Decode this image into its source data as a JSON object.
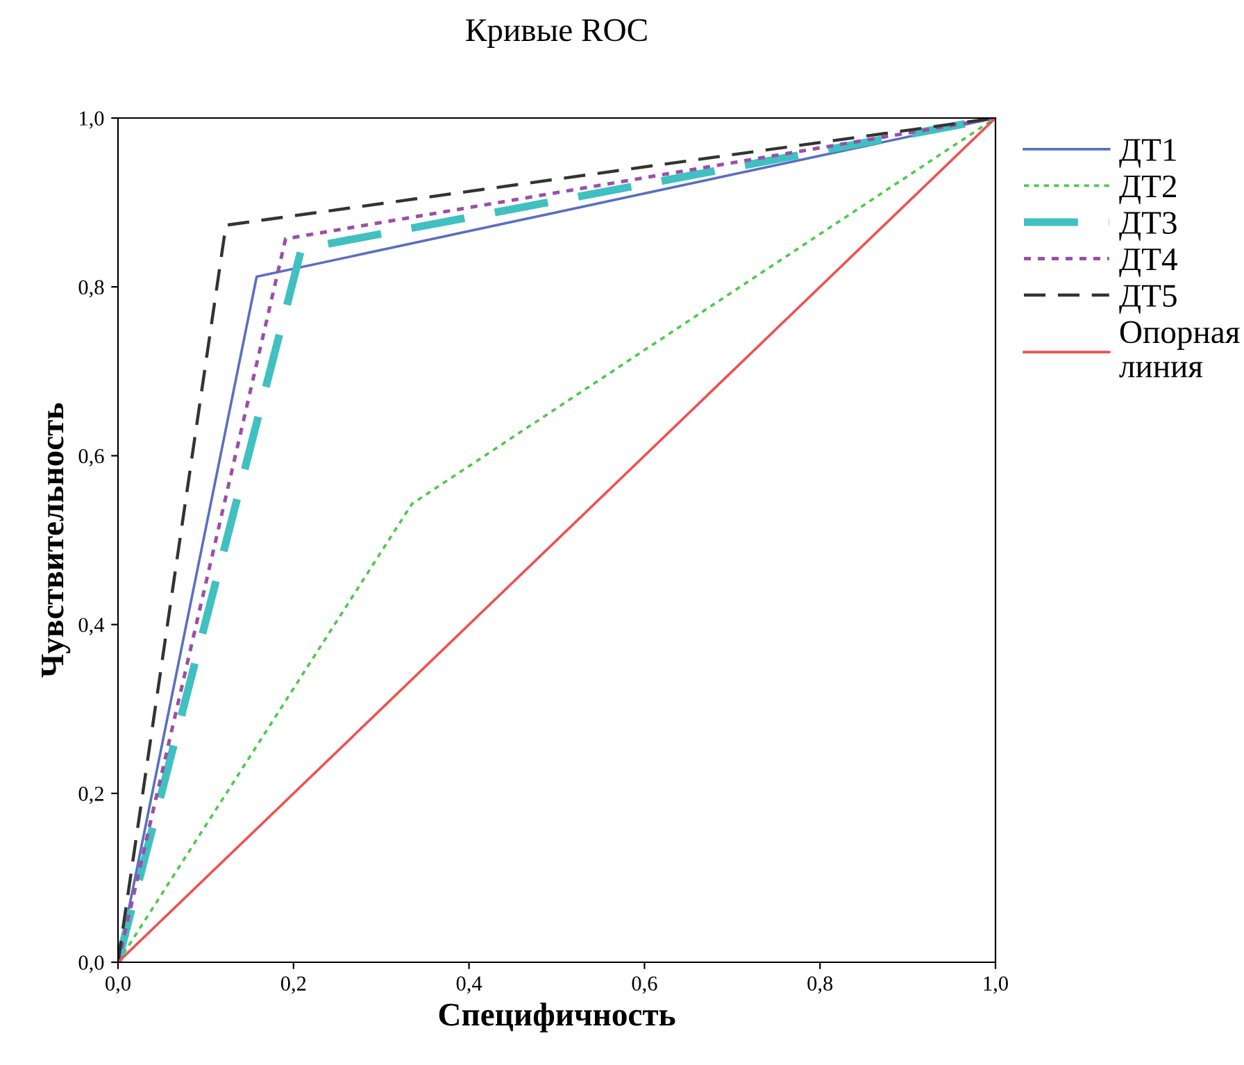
{
  "chart_data": {
    "type": "line",
    "title": "Кривые ROC",
    "xlabel": "Специфичность",
    "ylabel": "Чувствительность",
    "xlim": [
      0,
      1
    ],
    "ylim": [
      0,
      1
    ],
    "xticks": [
      {
        "value": 0,
        "label": "0,0"
      },
      {
        "value": 0.2,
        "label": "0,2"
      },
      {
        "value": 0.4,
        "label": "0,4"
      },
      {
        "value": 0.6,
        "label": "0,6"
      },
      {
        "value": 0.8,
        "label": "0,8"
      },
      {
        "value": 1,
        "label": "1,0"
      }
    ],
    "yticks": [
      {
        "value": 0,
        "label": "0,0"
      },
      {
        "value": 0.2,
        "label": "0,2"
      },
      {
        "value": 0.4,
        "label": "0,4"
      },
      {
        "value": 0.6,
        "label": "0,6"
      },
      {
        "value": 0.8,
        "label": "0,8"
      },
      {
        "value": 1,
        "label": "1,0"
      }
    ],
    "grid": false,
    "legend": "right",
    "series": [
      {
        "name": "ДТ1",
        "color": "#5a6fc0",
        "line_style": "solid",
        "x": [
          0,
          0.158,
          1
        ],
        "values": [
          0,
          0.812,
          1
        ]
      },
      {
        "name": "ДТ2",
        "color": "#4cc94c",
        "line_style": "dotted",
        "x": [
          0,
          0.335,
          1
        ],
        "values": [
          0,
          0.543,
          1
        ]
      },
      {
        "name": "ДТ3",
        "color": "#40c0c0",
        "line_style": "dashed",
        "x": [
          0,
          0.209,
          1
        ],
        "values": [
          0,
          0.845,
          1
        ]
      },
      {
        "name": "ДТ4",
        "color": "#9a4fa8",
        "line_style": "dotted",
        "x": [
          0,
          0.191,
          1
        ],
        "values": [
          0,
          0.857,
          1
        ]
      },
      {
        "name": "ДТ5",
        "color": "#333333",
        "line_style": "dashed",
        "x": [
          0,
          0.123,
          1
        ],
        "values": [
          0,
          0.873,
          1
        ]
      },
      {
        "name": "Опорная\nлиния",
        "color": "#f05050",
        "line_style": "solid",
        "x": [
          0,
          1
        ],
        "values": [
          0,
          1
        ]
      }
    ]
  }
}
